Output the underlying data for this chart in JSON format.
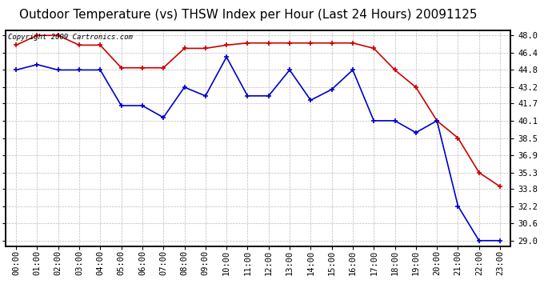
{
  "title": "Outdoor Temperature (vs) THSW Index per Hour (Last 24 Hours) 20091125",
  "copyright_text": "Copyright 2009 Cartronics.com",
  "hours": [
    "00:00",
    "01:00",
    "02:00",
    "03:00",
    "04:00",
    "05:00",
    "06:00",
    "07:00",
    "08:00",
    "09:00",
    "10:00",
    "11:00",
    "12:00",
    "13:00",
    "14:00",
    "15:00",
    "16:00",
    "17:00",
    "18:00",
    "19:00",
    "20:00",
    "21:00",
    "22:00",
    "23:00"
  ],
  "outdoor_temp": [
    44.8,
    45.3,
    44.8,
    44.8,
    44.8,
    41.5,
    41.5,
    40.4,
    43.2,
    42.4,
    46.0,
    42.4,
    42.4,
    44.8,
    42.0,
    43.0,
    44.8,
    40.1,
    40.1,
    39.0,
    40.1,
    32.2,
    29.0,
    29.0
  ],
  "thsw_index": [
    47.1,
    48.0,
    48.0,
    47.1,
    47.1,
    45.0,
    45.0,
    45.0,
    46.8,
    46.8,
    47.1,
    47.3,
    47.3,
    47.3,
    47.3,
    47.3,
    47.3,
    46.8,
    44.8,
    43.2,
    40.1,
    38.5,
    35.3,
    34.0
  ],
  "ylim_min": 28.5,
  "ylim_max": 48.5,
  "yticks": [
    29.0,
    30.6,
    32.2,
    33.8,
    35.3,
    36.9,
    38.5,
    40.1,
    41.7,
    43.2,
    44.8,
    46.4,
    48.0
  ],
  "red_color": "#cc0000",
  "blue_color": "#0000cc",
  "grid_color": "#bbbbbb",
  "bg_color": "#ffffff",
  "title_fontsize": 11,
  "copyright_fontsize": 6.5,
  "tick_fontsize": 7.5,
  "marker_size": 5
}
